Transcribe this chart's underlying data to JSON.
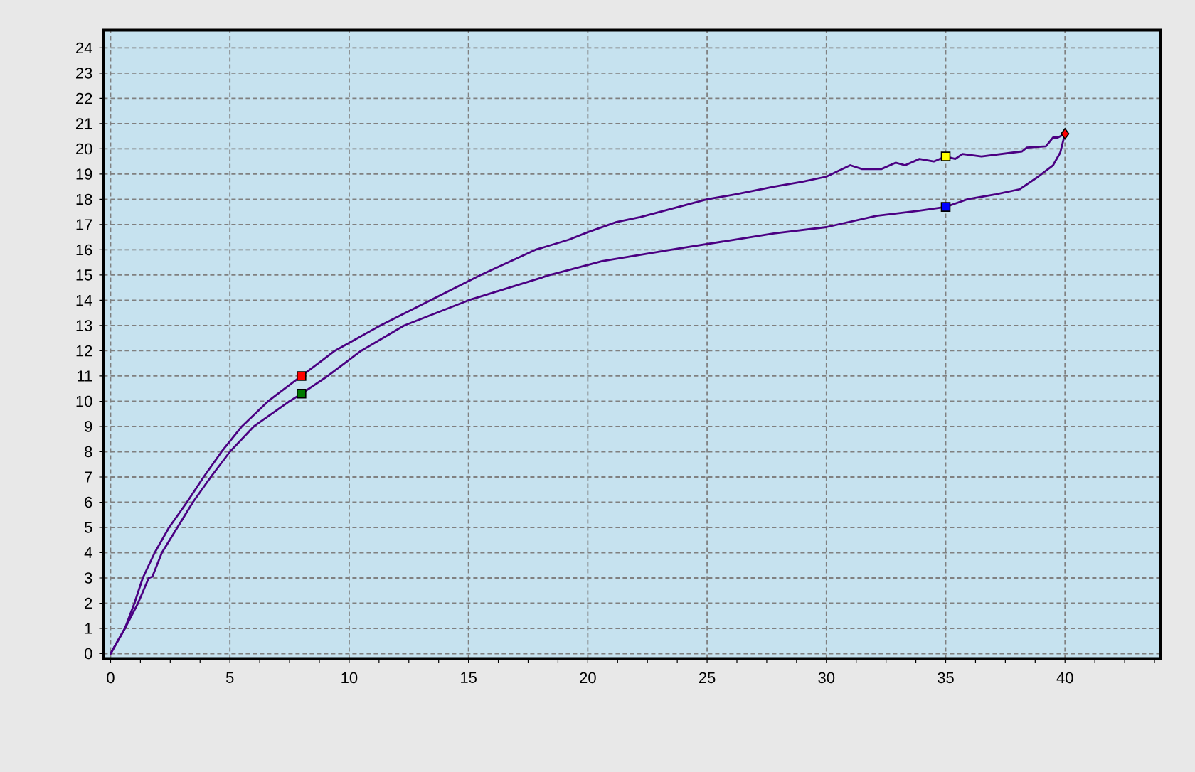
{
  "chart_data": {
    "type": "line",
    "xlim": [
      -0.3,
      44
    ],
    "ylim": [
      -0.2,
      24.7
    ],
    "xticks": [
      0,
      {
        "value": 1.25,
        "label": null
      },
      {
        "value": 2.5,
        "label": null
      },
      {
        "value": 3.75,
        "label": null
      },
      5,
      {
        "value": 6.25,
        "label": null
      },
      {
        "value": 7.5,
        "label": null
      },
      {
        "value": 8.75,
        "label": null
      },
      10,
      {
        "value": 11.25,
        "label": null
      },
      {
        "value": 12.5,
        "label": null
      },
      {
        "value": 13.75,
        "label": null
      },
      15,
      {
        "value": 16.25,
        "label": null
      },
      {
        "value": 17.5,
        "label": null
      },
      {
        "value": 18.75,
        "label": null
      },
      20,
      {
        "value": 21.25,
        "label": null
      },
      {
        "value": 22.5,
        "label": null
      },
      {
        "value": 23.75,
        "label": null
      },
      25,
      {
        "value": 26.25,
        "label": null
      },
      {
        "value": 27.5,
        "label": null
      },
      {
        "value": 28.75,
        "label": null
      },
      30,
      {
        "value": 31.25,
        "label": null
      },
      {
        "value": 32.5,
        "label": null
      },
      {
        "value": 33.75,
        "label": null
      },
      35,
      {
        "value": 36.25,
        "label": null
      },
      {
        "value": 37.5,
        "label": null
      },
      {
        "value": 38.75,
        "label": null
      },
      40,
      {
        "value": 41.25,
        "label": null
      },
      {
        "value": 42.5,
        "label": null
      },
      {
        "value": 43.75,
        "label": null
      }
    ],
    "yticks": [
      0,
      1,
      2,
      3,
      4,
      5,
      6,
      7,
      8,
      9,
      10,
      11,
      12,
      13,
      14,
      15,
      16,
      17,
      18,
      19,
      20,
      21,
      22,
      23,
      24
    ],
    "grid": true,
    "series": [
      {
        "color": "#4b0082",
        "x": [
          0,
          0.6,
          1.0,
          1.35,
          1.85,
          2.45,
          3.2,
          3.9,
          4.65,
          5.5,
          6.6,
          8,
          9.4,
          11.3,
          13.4,
          15.5,
          17.8,
          19.2,
          20.0,
          21.2,
          22.2,
          23.8,
          25.0,
          26.2,
          27.8,
          29.0,
          30.0,
          31.0,
          31.5,
          32.3,
          32.9,
          33.3,
          33.9,
          34.5,
          35.0,
          35.4,
          35.7,
          36.5,
          38.2,
          38.4,
          39.2,
          39.5,
          39.7,
          40
        ],
        "values": [
          0,
          1,
          2,
          3,
          4,
          5,
          6,
          7,
          8,
          9,
          10,
          11,
          12,
          13,
          14,
          15,
          16,
          16.4,
          16.7,
          17.1,
          17.3,
          17.7,
          18.0,
          18.2,
          18.5,
          18.7,
          18.9,
          19.35,
          19.2,
          19.2,
          19.45,
          19.35,
          19.6,
          19.5,
          19.7,
          19.6,
          19.8,
          19.7,
          19.9,
          20.05,
          20.1,
          20.45,
          20.45,
          20.6
        ]
      },
      {
        "color": "#4b0082",
        "x": [
          0,
          0.6,
          1.15,
          1.6,
          1.75,
          2.15,
          2.8,
          3.45,
          4.2,
          5.0,
          6.0,
          7.5,
          8,
          9.1,
          10.5,
          12.3,
          15.0,
          18.4,
          19.2,
          20.6,
          22.2,
          23.8,
          25.8,
          27.8,
          30.0,
          32.1,
          33.9,
          35.0,
          35.9,
          37.1,
          38.1,
          38.8,
          39.5,
          39.8,
          40
        ],
        "values": [
          0,
          1,
          2,
          3,
          3.05,
          4,
          5,
          6,
          7,
          8,
          9,
          10,
          10.3,
          11,
          12,
          13,
          14,
          15,
          15.2,
          15.55,
          15.8,
          16.05,
          16.35,
          16.65,
          16.9,
          17.35,
          17.55,
          17.7,
          18.0,
          18.2,
          18.4,
          18.85,
          19.35,
          19.85,
          20.6
        ]
      },
      {
        "type": "scatter",
        "marker": "square",
        "x": [
          8,
          8,
          35,
          35
        ],
        "values": [
          11,
          10.3,
          19.7,
          17.7
        ],
        "colors": [
          "#ff0000",
          "#007a00",
          "#ffff00",
          "#0000ff"
        ]
      },
      {
        "type": "scatter",
        "marker": "diamond",
        "x": [
          40
        ],
        "values": [
          20.6
        ],
        "color": "#ff0000"
      }
    ]
  }
}
